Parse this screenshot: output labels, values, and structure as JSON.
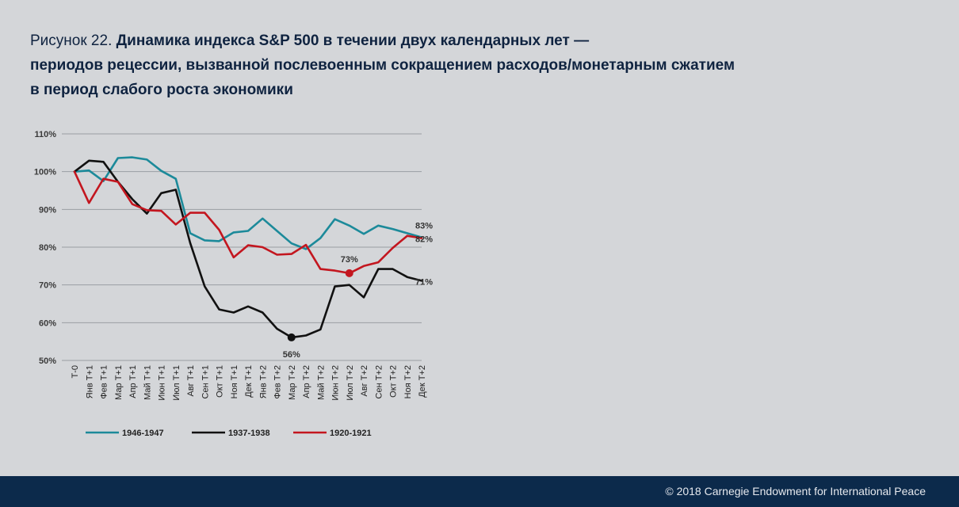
{
  "title": {
    "prefix": "Рисунок 22.",
    "line1": "Динамика индекса S&P 500 в течении двух календарных лет —",
    "line2": "периодов рецессии, вызванной послевоенным сокращением расходов/монетарным сжатием",
    "line3": "в период слабого роста экономики"
  },
  "chart_data": {
    "type": "line",
    "title": "",
    "xlabel": "",
    "ylabel": "",
    "ylim": [
      50,
      110
    ],
    "y_ticks": [
      110,
      100,
      90,
      80,
      70,
      60,
      50
    ],
    "y_tick_labels": [
      "110%",
      "100%",
      "90%",
      "80%",
      "70%",
      "60%",
      "50%"
    ],
    "categories": [
      "Т-0",
      "Янв Т+1",
      "Фев Т+1",
      "Мар Т+1",
      "Апр Т+1",
      "Май Т+1",
      "Июн Т+1",
      "Июл Т+1",
      "Авг Т+1",
      "Сен Т+1",
      "Окт Т+1",
      "Ноя Т+1",
      "Дек Т+1",
      "Янв Т+2",
      "Фев Т+2",
      "Мар Т+2",
      "Апр Т+2",
      "Май Т+2",
      "Июн Т+2",
      "Июл Т+2",
      "Авг Т+2",
      "Сен Т+2",
      "Окт Т+2",
      "Ноя Т+2",
      "Дек Т+2"
    ],
    "series": [
      {
        "name": "1946-1947",
        "color": "#1c8a9a",
        "values": [
          100,
          100.3,
          97.5,
          103.6,
          103.8,
          103.2,
          100.2,
          98.1,
          83.7,
          81.8,
          81.6,
          83.9,
          84.3,
          87.6,
          84.3,
          81,
          79.5,
          82.4,
          87.4,
          85.7,
          83.5,
          85.7,
          84.8,
          83.7,
          82.6
        ]
      },
      {
        "name": "1937-1938",
        "color": "#111111",
        "values": [
          100,
          102.9,
          102.6,
          97.3,
          92.7,
          88.9,
          94.3,
          95.2,
          81.1,
          69.6,
          63.5,
          62.7,
          64.3,
          62.7,
          58.4,
          56.1,
          56.6,
          58.2,
          69.6,
          70,
          66.7,
          74.2,
          74.2,
          72.1,
          71.1
        ]
      },
      {
        "name": "1920-1921",
        "color": "#c3161f",
        "values": [
          100,
          91.7,
          98.1,
          97.3,
          91.4,
          89.8,
          89.6,
          86,
          89.1,
          89.1,
          84.6,
          77.3,
          80.5,
          80,
          78,
          78.2,
          80.6,
          74.2,
          73.8,
          73.1,
          75,
          76,
          79.8,
          83,
          82.4
        ]
      }
    ],
    "annotations": [
      {
        "series": "1946-1947",
        "index": 24,
        "text": "83%"
      },
      {
        "series": "1920-1921",
        "index": 24,
        "text": "82%"
      },
      {
        "series": "1937-1938",
        "index": 24,
        "text": "71%"
      },
      {
        "series": "1920-1921",
        "index": 19,
        "text": "73%",
        "marker": true
      },
      {
        "series": "1937-1938",
        "index": 15,
        "text": "56%",
        "marker": true
      }
    ],
    "legend": "bottom",
    "grid": true
  },
  "footer": {
    "copyright": "© 2018 Carnegie Endowment for International Peace"
  }
}
